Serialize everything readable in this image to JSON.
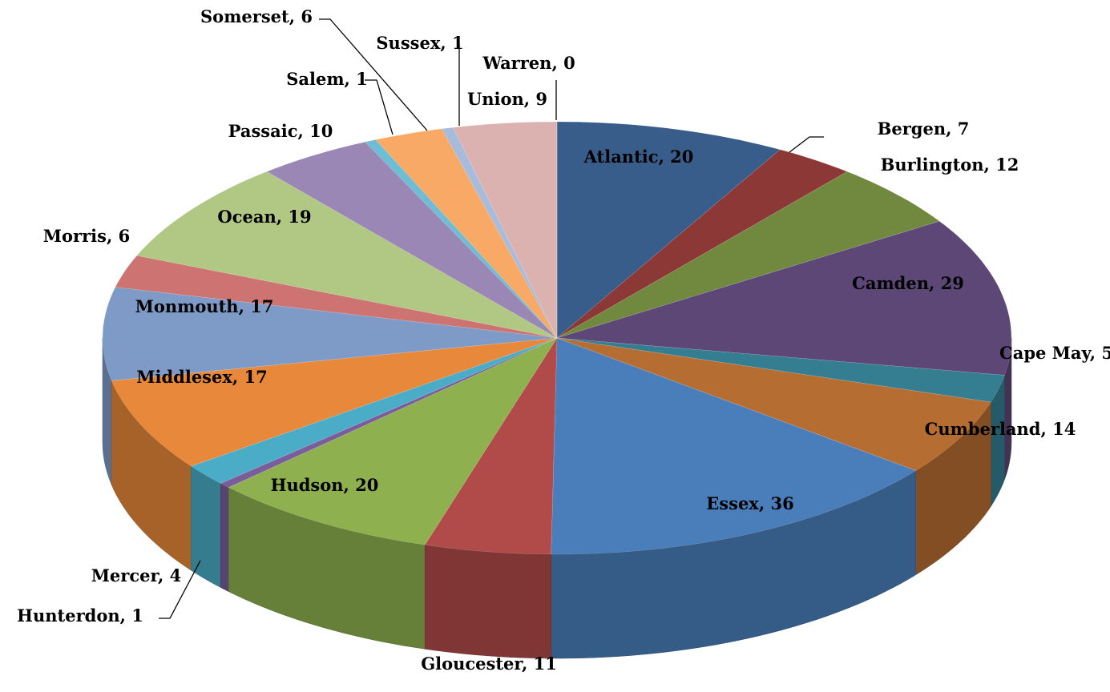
{
  "chart_data": {
    "type": "pie",
    "three_d": true,
    "categories": [
      "Atlantic",
      "Bergen",
      "Burlington",
      "Camden",
      "Cape May",
      "Cumberland",
      "Essex",
      "Gloucester",
      "Hudson",
      "Hunterdon",
      "Mercer",
      "Middlesex",
      "Monmouth",
      "Morris",
      "Ocean",
      "Passaic",
      "Salem",
      "Somerset",
      "Sussex",
      "Union",
      "Warren"
    ],
    "values": [
      20,
      7,
      12,
      29,
      5,
      14,
      36,
      11,
      20,
      1,
      4,
      17,
      17,
      6,
      19,
      10,
      1,
      6,
      1,
      9,
      0
    ],
    "colors": [
      "#385d8a",
      "#8c3836",
      "#71893f",
      "#5c4776",
      "#357d91",
      "#b66d31",
      "#4a7ebb",
      "#b14b49",
      "#8eb04f",
      "#7a5e9c",
      "#4aacc6",
      "#e8883b",
      "#7e9bc8",
      "#cd7371",
      "#b0c884",
      "#9a87b5",
      "#6fbdd5",
      "#f7a965",
      "#a8bbdb",
      "#dcb2b1",
      "#c0c0c0"
    ]
  }
}
